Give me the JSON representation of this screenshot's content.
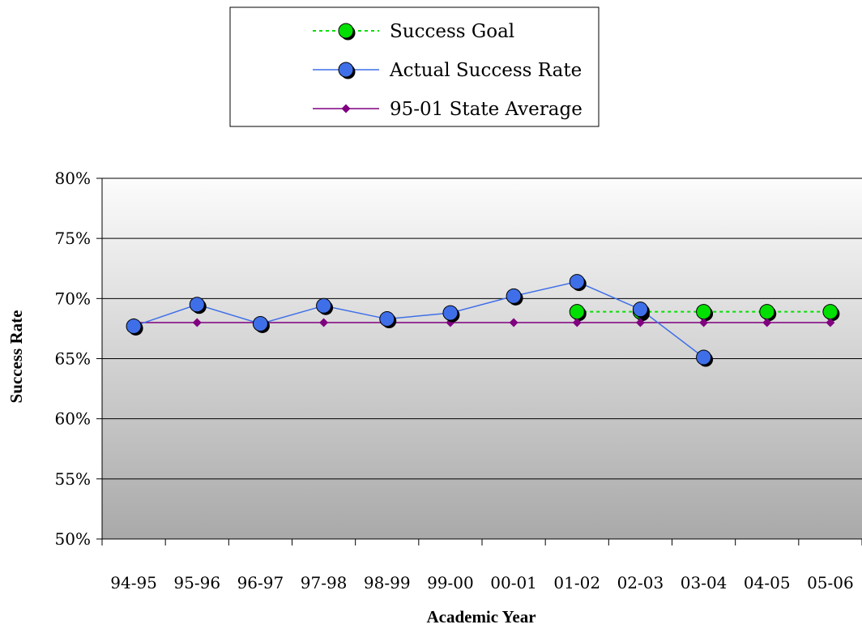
{
  "chart_data": {
    "type": "line",
    "categories": [
      "94-95",
      "95-96",
      "96-97",
      "97-98",
      "98-99",
      "99-00",
      "00-01",
      "01-02",
      "02-03",
      "03-04",
      "04-05",
      "05-06"
    ],
    "series": [
      {
        "name": "Success Goal",
        "color": "#00e000",
        "line_style": "dotted",
        "marker": "circle",
        "values": [
          null,
          null,
          null,
          null,
          null,
          null,
          null,
          68.9,
          68.9,
          68.9,
          68.9,
          68.9
        ]
      },
      {
        "name": "Actual Success Rate",
        "color": "#3f6fe8",
        "line_style": "solid",
        "marker": "circle",
        "values": [
          67.7,
          69.5,
          67.9,
          69.4,
          68.3,
          68.8,
          70.2,
          71.4,
          69.1,
          65.1,
          null,
          null
        ]
      },
      {
        "name": "95-01 State Average",
        "color": "#800080",
        "line_style": "solid",
        "marker": "diamond",
        "values": [
          68.0,
          68.0,
          68.0,
          68.0,
          68.0,
          68.0,
          68.0,
          68.0,
          68.0,
          68.0,
          68.0,
          68.0
        ]
      }
    ],
    "xlabel": "Academic Year",
    "ylabel": "Success Rate",
    "ylim": [
      50,
      80
    ],
    "yticks": [
      "50%",
      "55%",
      "60%",
      "65%",
      "70%",
      "75%",
      "80%"
    ],
    "grid": true,
    "legend_position": "top"
  }
}
